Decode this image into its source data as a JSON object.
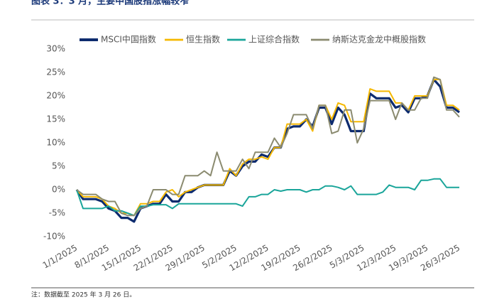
{
  "chart_data": {
    "type": "line",
    "title": "图表 3：3 月，主要中国股指涨幅较窄",
    "note": "注：数据截至 2025 年 3 月 26 日。",
    "categories": [
      "1/1/2025",
      null,
      null,
      null,
      null,
      "8/1/2025",
      null,
      null,
      null,
      null,
      "15/1/2025",
      null,
      null,
      null,
      null,
      "22/1/2025",
      null,
      null,
      null,
      null,
      "29/1/2025",
      null,
      null,
      null,
      null,
      "5/2/2025",
      null,
      null,
      null,
      null,
      "12/2/2025",
      null,
      null,
      null,
      null,
      "19/2/2025",
      null,
      null,
      null,
      null,
      "26/2/2025",
      null,
      null,
      null,
      null,
      "5/3/2025",
      null,
      null,
      null,
      null,
      "12/3/2025",
      null,
      null,
      null,
      null,
      "19/3/2025",
      null,
      null,
      null,
      null,
      "26/3/2025"
    ],
    "series": [
      {
        "name": "MSCI中国指数",
        "color": "#0d2b6e",
        "width": 3.2,
        "values": [
          0,
          -2,
          -2,
          -2,
          -2.5,
          -4,
          -4.5,
          -6,
          -6,
          -6.8,
          -4,
          -3.5,
          -3,
          -3,
          -1,
          -2.5,
          -2.5,
          -0.5,
          -0.5,
          0.5,
          1,
          1,
          1,
          1,
          4,
          3,
          5,
          6,
          6,
          7.5,
          7,
          9,
          9,
          13,
          13.5,
          13.5,
          15,
          13.5,
          17.5,
          17.5,
          14,
          17.5,
          16,
          12.5,
          12.5,
          12.5,
          20.5,
          19.5,
          19.5,
          19.5,
          17.5,
          18,
          16.5,
          19.5,
          19.5,
          20,
          23.5,
          22,
          17.5,
          17.5,
          16.5
        ]
      },
      {
        "name": "恒生指数",
        "color": "#f5b800",
        "width": 2,
        "values": [
          0,
          -1.5,
          -1.5,
          -1.5,
          -2,
          -3.5,
          -4,
          -5,
          -5,
          -5.5,
          -3,
          -3,
          -2.5,
          -2.5,
          -0.5,
          0,
          -1.5,
          -0.5,
          0,
          0.5,
          1,
          1,
          1,
          1,
          4.5,
          3,
          5.5,
          6.5,
          6.5,
          7,
          6.5,
          9,
          9,
          14,
          14,
          14,
          15,
          12.5,
          18,
          18,
          15,
          18.5,
          18,
          14.5,
          14.5,
          14.5,
          21.5,
          21,
          21,
          21,
          18.5,
          18.5,
          17,
          20,
          20,
          20,
          23.5,
          23.5,
          18,
          18,
          17
        ]
      },
      {
        "name": "上证综合指数",
        "color": "#1aa59a",
        "width": 2,
        "values": [
          0,
          -4,
          -4,
          -4,
          -4,
          -3.5,
          -4.5,
          -4.5,
          -5,
          -5.5,
          -3.5,
          -3.5,
          -3.2,
          -3.2,
          -3.2,
          -4,
          -3,
          -3,
          -3,
          -3,
          -3,
          -3,
          -3,
          -3,
          -3,
          -3,
          -3.5,
          -1.5,
          -1.5,
          -1,
          -1,
          0,
          -0.3,
          0,
          0,
          0,
          -0.5,
          0,
          0,
          0.8,
          0.8,
          0.5,
          0,
          0.8,
          -1,
          -1,
          -1,
          -1,
          -0.5,
          1,
          0.5,
          0.5,
          0.5,
          0,
          2,
          2,
          2.3,
          2.3,
          0.5,
          0.5,
          0.5
        ]
      },
      {
        "name": "纳斯达克金龙中概股指数",
        "color": "#8b8b70",
        "width": 2,
        "values": [
          0,
          -1,
          -1,
          -1,
          -2,
          -2.5,
          -2.5,
          -5,
          -5.5,
          -5.5,
          -4,
          -3.5,
          0,
          0,
          0,
          -1,
          -1,
          3,
          3,
          3,
          4,
          3,
          8,
          4,
          4,
          4,
          6.5,
          4.5,
          8,
          8,
          8,
          11,
          9,
          12,
          16,
          16,
          16,
          13,
          18,
          18,
          12,
          12.5,
          17,
          17,
          10,
          13,
          19,
          19,
          19,
          19,
          15,
          18.5,
          17,
          17,
          19.5,
          19.5,
          24,
          23.5,
          17,
          17,
          15.5
        ]
      }
    ],
    "ylim": [
      -10,
      30
    ],
    "yticks": [
      {
        "value": -10,
        "label": "-10%"
      },
      {
        "value": -5,
        "label": "-5%"
      },
      {
        "value": 0,
        "label": "0%"
      },
      {
        "value": 5,
        "label": "5%"
      },
      {
        "value": 10,
        "label": "10%"
      },
      {
        "value": 15,
        "label": "15%"
      },
      {
        "value": 20,
        "label": "20%"
      },
      {
        "value": 25,
        "label": "25%"
      },
      {
        "value": 30,
        "label": "30%"
      }
    ],
    "grid": false,
    "legend": "top"
  }
}
